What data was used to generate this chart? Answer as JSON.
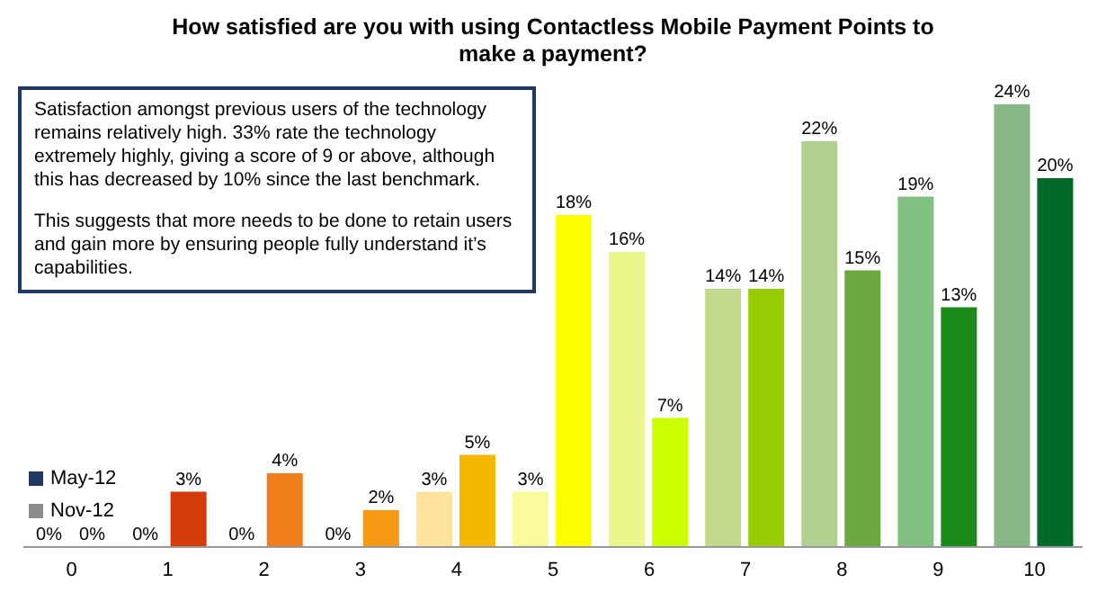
{
  "chart_data": {
    "type": "bar",
    "title": "How satisfied are you with using Contactless Mobile Payment Points to make a payment?",
    "categories": [
      "0",
      "1",
      "2",
      "3",
      "4",
      "5",
      "6",
      "7",
      "8",
      "9",
      "10"
    ],
    "series": [
      {
        "name": "May-12",
        "color": "#1f3864",
        "colors": [
          "#f0a080",
          "#f0a080",
          "#f8c080",
          "#f8c080",
          "#fde49a",
          "#fafa9a",
          "#eaf58a",
          "#c2d88a",
          "#b0d090",
          "#80c080",
          "#86b886"
        ],
        "values": [
          0,
          0,
          0,
          0,
          3,
          3,
          16,
          14,
          22,
          19,
          24
        ],
        "value_labels": [
          "0%",
          "0%",
          "0%",
          "0%",
          "3%",
          "3%",
          "16%",
          "14%",
          "22%",
          "19%",
          "24%"
        ]
      },
      {
        "name": "Nov-12",
        "color": "#8c8c8c",
        "colors": [
          "#d53a0b",
          "#d53a0b",
          "#f07f1b",
          "#f59a12",
          "#f5b800",
          "#ffff00",
          "#ccff00",
          "#99cc00",
          "#6aa840",
          "#1a8a1a",
          "#006a2a"
        ],
        "values": [
          0,
          3,
          4,
          2,
          5,
          18,
          7,
          14,
          15,
          13,
          20
        ],
        "value_labels": [
          "0%",
          "3%",
          "4%",
          "2%",
          "5%",
          "18%",
          "7%",
          "14%",
          "15%",
          "13%",
          "20%"
        ]
      }
    ],
    "annotations": [
      "Satisfaction amongst previous users of the technology remains relatively high. 33% rate the technology extremely highly, giving a score of 9 or above, although this has decreased by 10% since the last benchmark.",
      "This suggests that more needs to be done to retain users and gain more by ensuring people fully understand it’s capabilities."
    ],
    "legend": "left",
    "grid": false
  }
}
